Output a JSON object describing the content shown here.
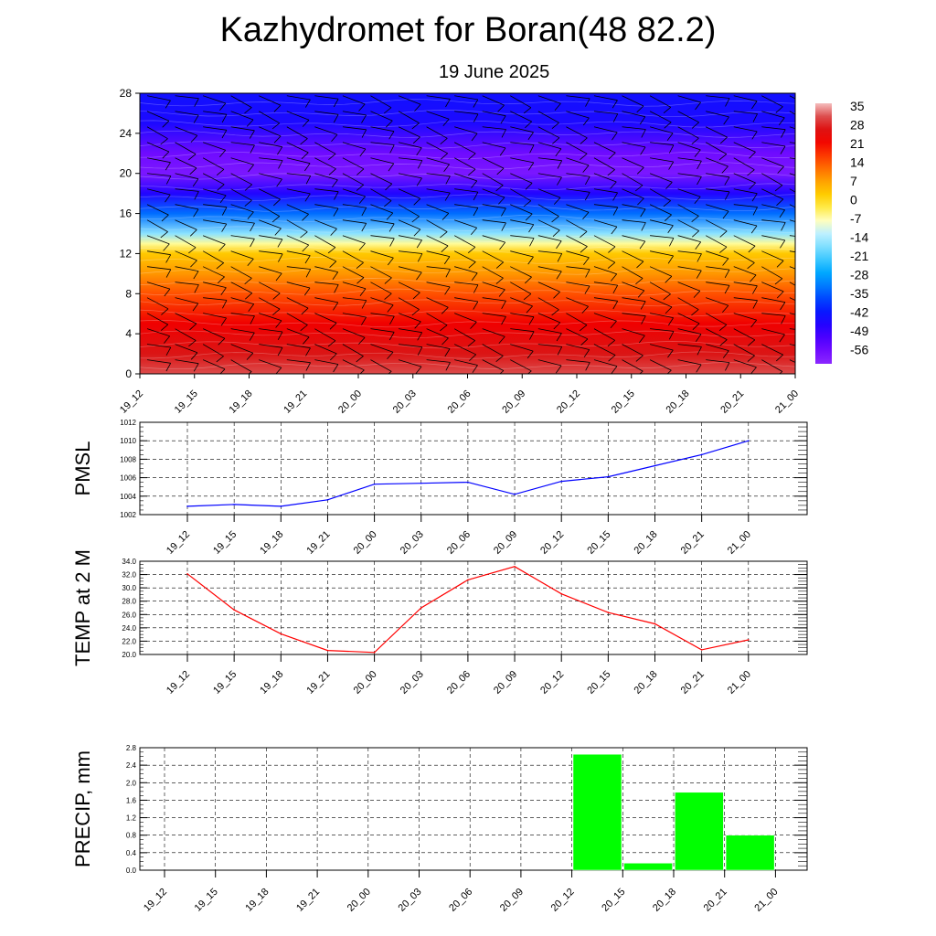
{
  "title": "Kazhydromet for Boran(48 82.2)",
  "subtitle": "19 June 2025",
  "time_labels": [
    "19_12",
    "19_15",
    "19_18",
    "19_21",
    "20_00",
    "20_03",
    "20_06",
    "20_09",
    "20_12",
    "20_15",
    "20_18",
    "20_21",
    "21_00"
  ],
  "colors": {
    "pmsl": "#0000ff",
    "temp": "#ff0000",
    "precip": "#00ff00"
  },
  "chart_data": [
    {
      "type": "heatmap",
      "title": "",
      "x": [
        "19_12",
        "19_15",
        "19_18",
        "19_21",
        "20_00",
        "20_03",
        "20_06",
        "20_09",
        "20_12",
        "20_15",
        "20_18",
        "20_21",
        "21_00"
      ],
      "ylim": [
        0,
        28
      ],
      "y_ticks": [
        0,
        4,
        8,
        12,
        16,
        20,
        24,
        28
      ],
      "colorbar_labels": [
        "35",
        "28",
        "21",
        "14",
        "7",
        "0",
        "-7",
        "-14",
        "-21",
        "-28",
        "-35",
        "-42",
        "-49",
        "-56"
      ],
      "colorbar_range": [
        -63,
        35
      ],
      "temperature_profile": [
        {
          "level": 0,
          "value": 30
        },
        {
          "level": 2,
          "value": 26
        },
        {
          "level": 5,
          "value": 21
        },
        {
          "level": 8,
          "value": 13
        },
        {
          "level": 10,
          "value": 7
        },
        {
          "level": 12,
          "value": 1
        },
        {
          "level": 13,
          "value": -8
        },
        {
          "level": 14,
          "value": -18
        },
        {
          "level": 16,
          "value": -35
        },
        {
          "level": 18,
          "value": -48
        },
        {
          "level": 20,
          "value": -60
        },
        {
          "level": 22,
          "value": -58
        },
        {
          "level": 25,
          "value": -47
        },
        {
          "level": 28,
          "value": -45
        }
      ],
      "wind_barbs": true,
      "grid": false
    },
    {
      "type": "line",
      "ylabel": "PMSL",
      "x": [
        "19_12",
        "19_15",
        "19_18",
        "19_21",
        "20_00",
        "20_03",
        "20_06",
        "20_09",
        "20_12",
        "20_15",
        "20_18",
        "20_21",
        "21_00"
      ],
      "values": [
        1002.9,
        1003.1,
        1002.9,
        1003.6,
        1005.3,
        1005.4,
        1005.5,
        1004.2,
        1005.6,
        1006.1,
        1007.3,
        1008.5,
        1010.0
      ],
      "ylim": [
        1002,
        1012
      ],
      "y_ticks": [
        "1002",
        "1004",
        "1006",
        "1008",
        "1010",
        "1012"
      ],
      "grid": true
    },
    {
      "type": "line",
      "ylabel": "TEMP at 2 M",
      "x": [
        "19_12",
        "19_15",
        "19_18",
        "19_21",
        "20_00",
        "20_03",
        "20_06",
        "20_09",
        "20_12",
        "20_15",
        "20_18",
        "20_21",
        "21_00"
      ],
      "values": [
        32.1,
        26.7,
        23.1,
        20.6,
        20.3,
        27.0,
        31.2,
        33.2,
        29.1,
        26.3,
        24.6,
        20.7,
        22.2
      ],
      "ylim": [
        20,
        34
      ],
      "y_ticks": [
        "20.0",
        "22.0",
        "24.0",
        "26.0",
        "28.0",
        "30.0",
        "32.0",
        "34.0"
      ],
      "grid": true
    },
    {
      "type": "bar",
      "ylabel": "PRECIP, mm",
      "x": [
        "19_12",
        "19_15",
        "19_18",
        "19_21",
        "20_00",
        "20_03",
        "20_06",
        "20_09",
        "20_12",
        "20_15",
        "20_18",
        "20_21",
        "21_00"
      ],
      "values": [
        0,
        0,
        0,
        0,
        0,
        0,
        0,
        0,
        2.65,
        0.16,
        1.78,
        0.8,
        0
      ],
      "ylim": [
        0,
        2.8
      ],
      "y_ticks": [
        "0.0",
        "0.4",
        "0.8",
        "1.2",
        "1.6",
        "2.0",
        "2.4",
        "2.8"
      ],
      "grid": true
    }
  ]
}
